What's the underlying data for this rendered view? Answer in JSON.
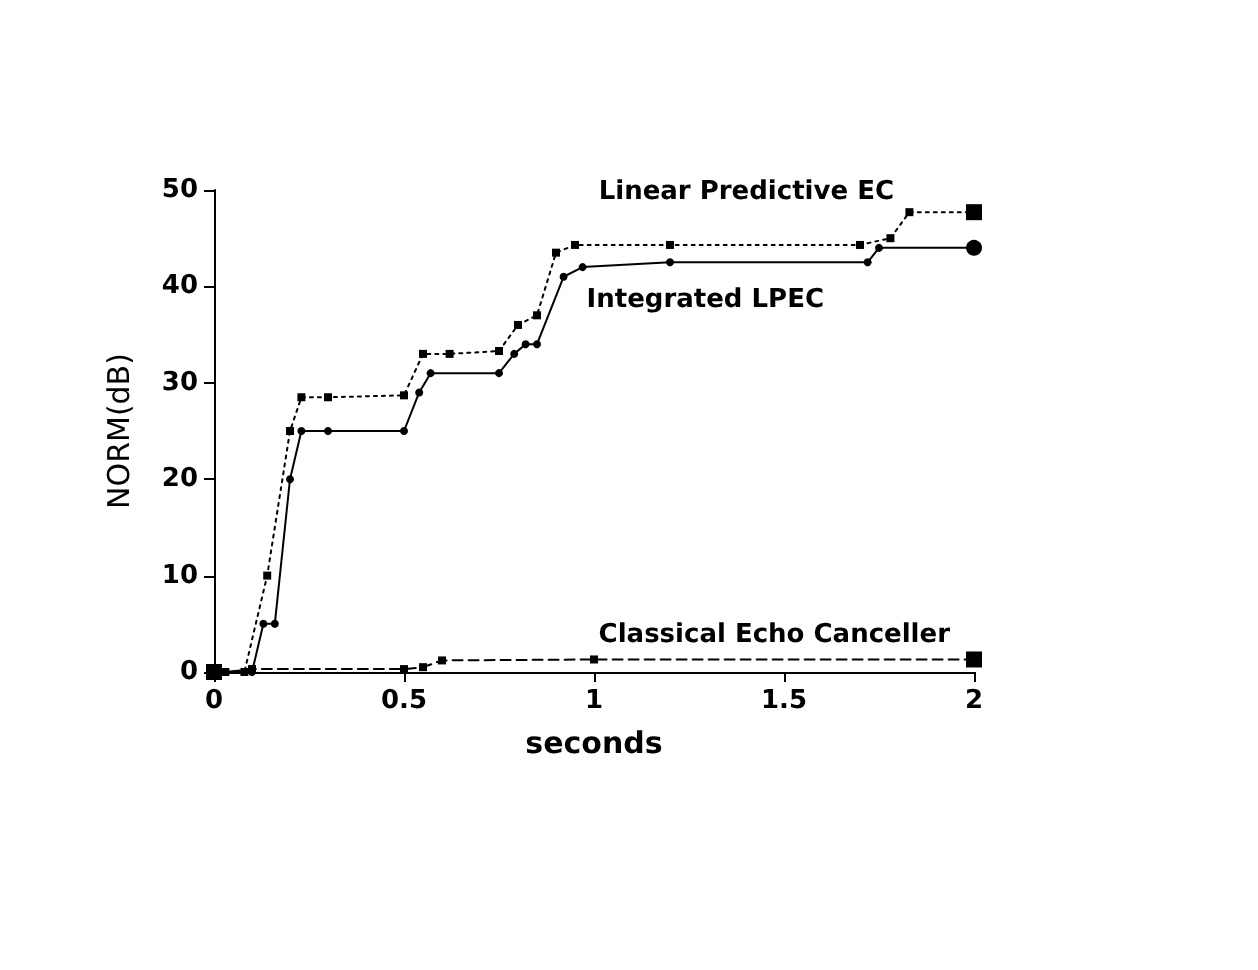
{
  "chart_data": {
    "type": "line",
    "xlabel": "seconds",
    "ylabel": "NORM(dB)",
    "xlim": [
      0,
      2
    ],
    "ylim": [
      0,
      50
    ],
    "xticks": [
      0,
      0.5,
      1,
      1.5,
      2
    ],
    "yticks": [
      0,
      10,
      20,
      30,
      40,
      50
    ],
    "grid": false,
    "legend": false,
    "series": [
      {
        "name": "Linear Predictive EC",
        "color": "#000000",
        "line_style": "dotted",
        "marker": "square",
        "x": [
          0,
          0.08,
          0.14,
          0.2,
          0.23,
          0.3,
          0.5,
          0.55,
          0.62,
          0.75,
          0.8,
          0.85,
          0.9,
          0.95,
          1.2,
          1.7,
          1.78,
          1.83,
          2
        ],
        "values": [
          0,
          0,
          10,
          25,
          28.5,
          28.5,
          28.7,
          33,
          33,
          33.3,
          36,
          37,
          43.5,
          44.3,
          44.3,
          44.3,
          45,
          47.7,
          47.7
        ]
      },
      {
        "name": "Integrated LPEC",
        "color": "#000000",
        "line_style": "solid",
        "marker": "circle",
        "x": [
          0,
          0.1,
          0.13,
          0.16,
          0.2,
          0.23,
          0.3,
          0.5,
          0.54,
          0.57,
          0.75,
          0.79,
          0.82,
          0.85,
          0.92,
          0.97,
          1.2,
          1.72,
          1.75,
          2
        ],
        "values": [
          0,
          0,
          5,
          5,
          20,
          25,
          25,
          25,
          29,
          31,
          31,
          33,
          34,
          34,
          41,
          42,
          42.5,
          42.5,
          44,
          44
        ]
      },
      {
        "name": "Classical Echo Canceller",
        "color": "#000000",
        "line_style": "dashed",
        "marker": "square",
        "x": [
          0,
          0.03,
          0.1,
          0.5,
          0.55,
          0.6,
          1.0,
          2
        ],
        "values": [
          0,
          0,
          0.3,
          0.3,
          0.5,
          1.2,
          1.3,
          1.3
        ]
      }
    ]
  }
}
